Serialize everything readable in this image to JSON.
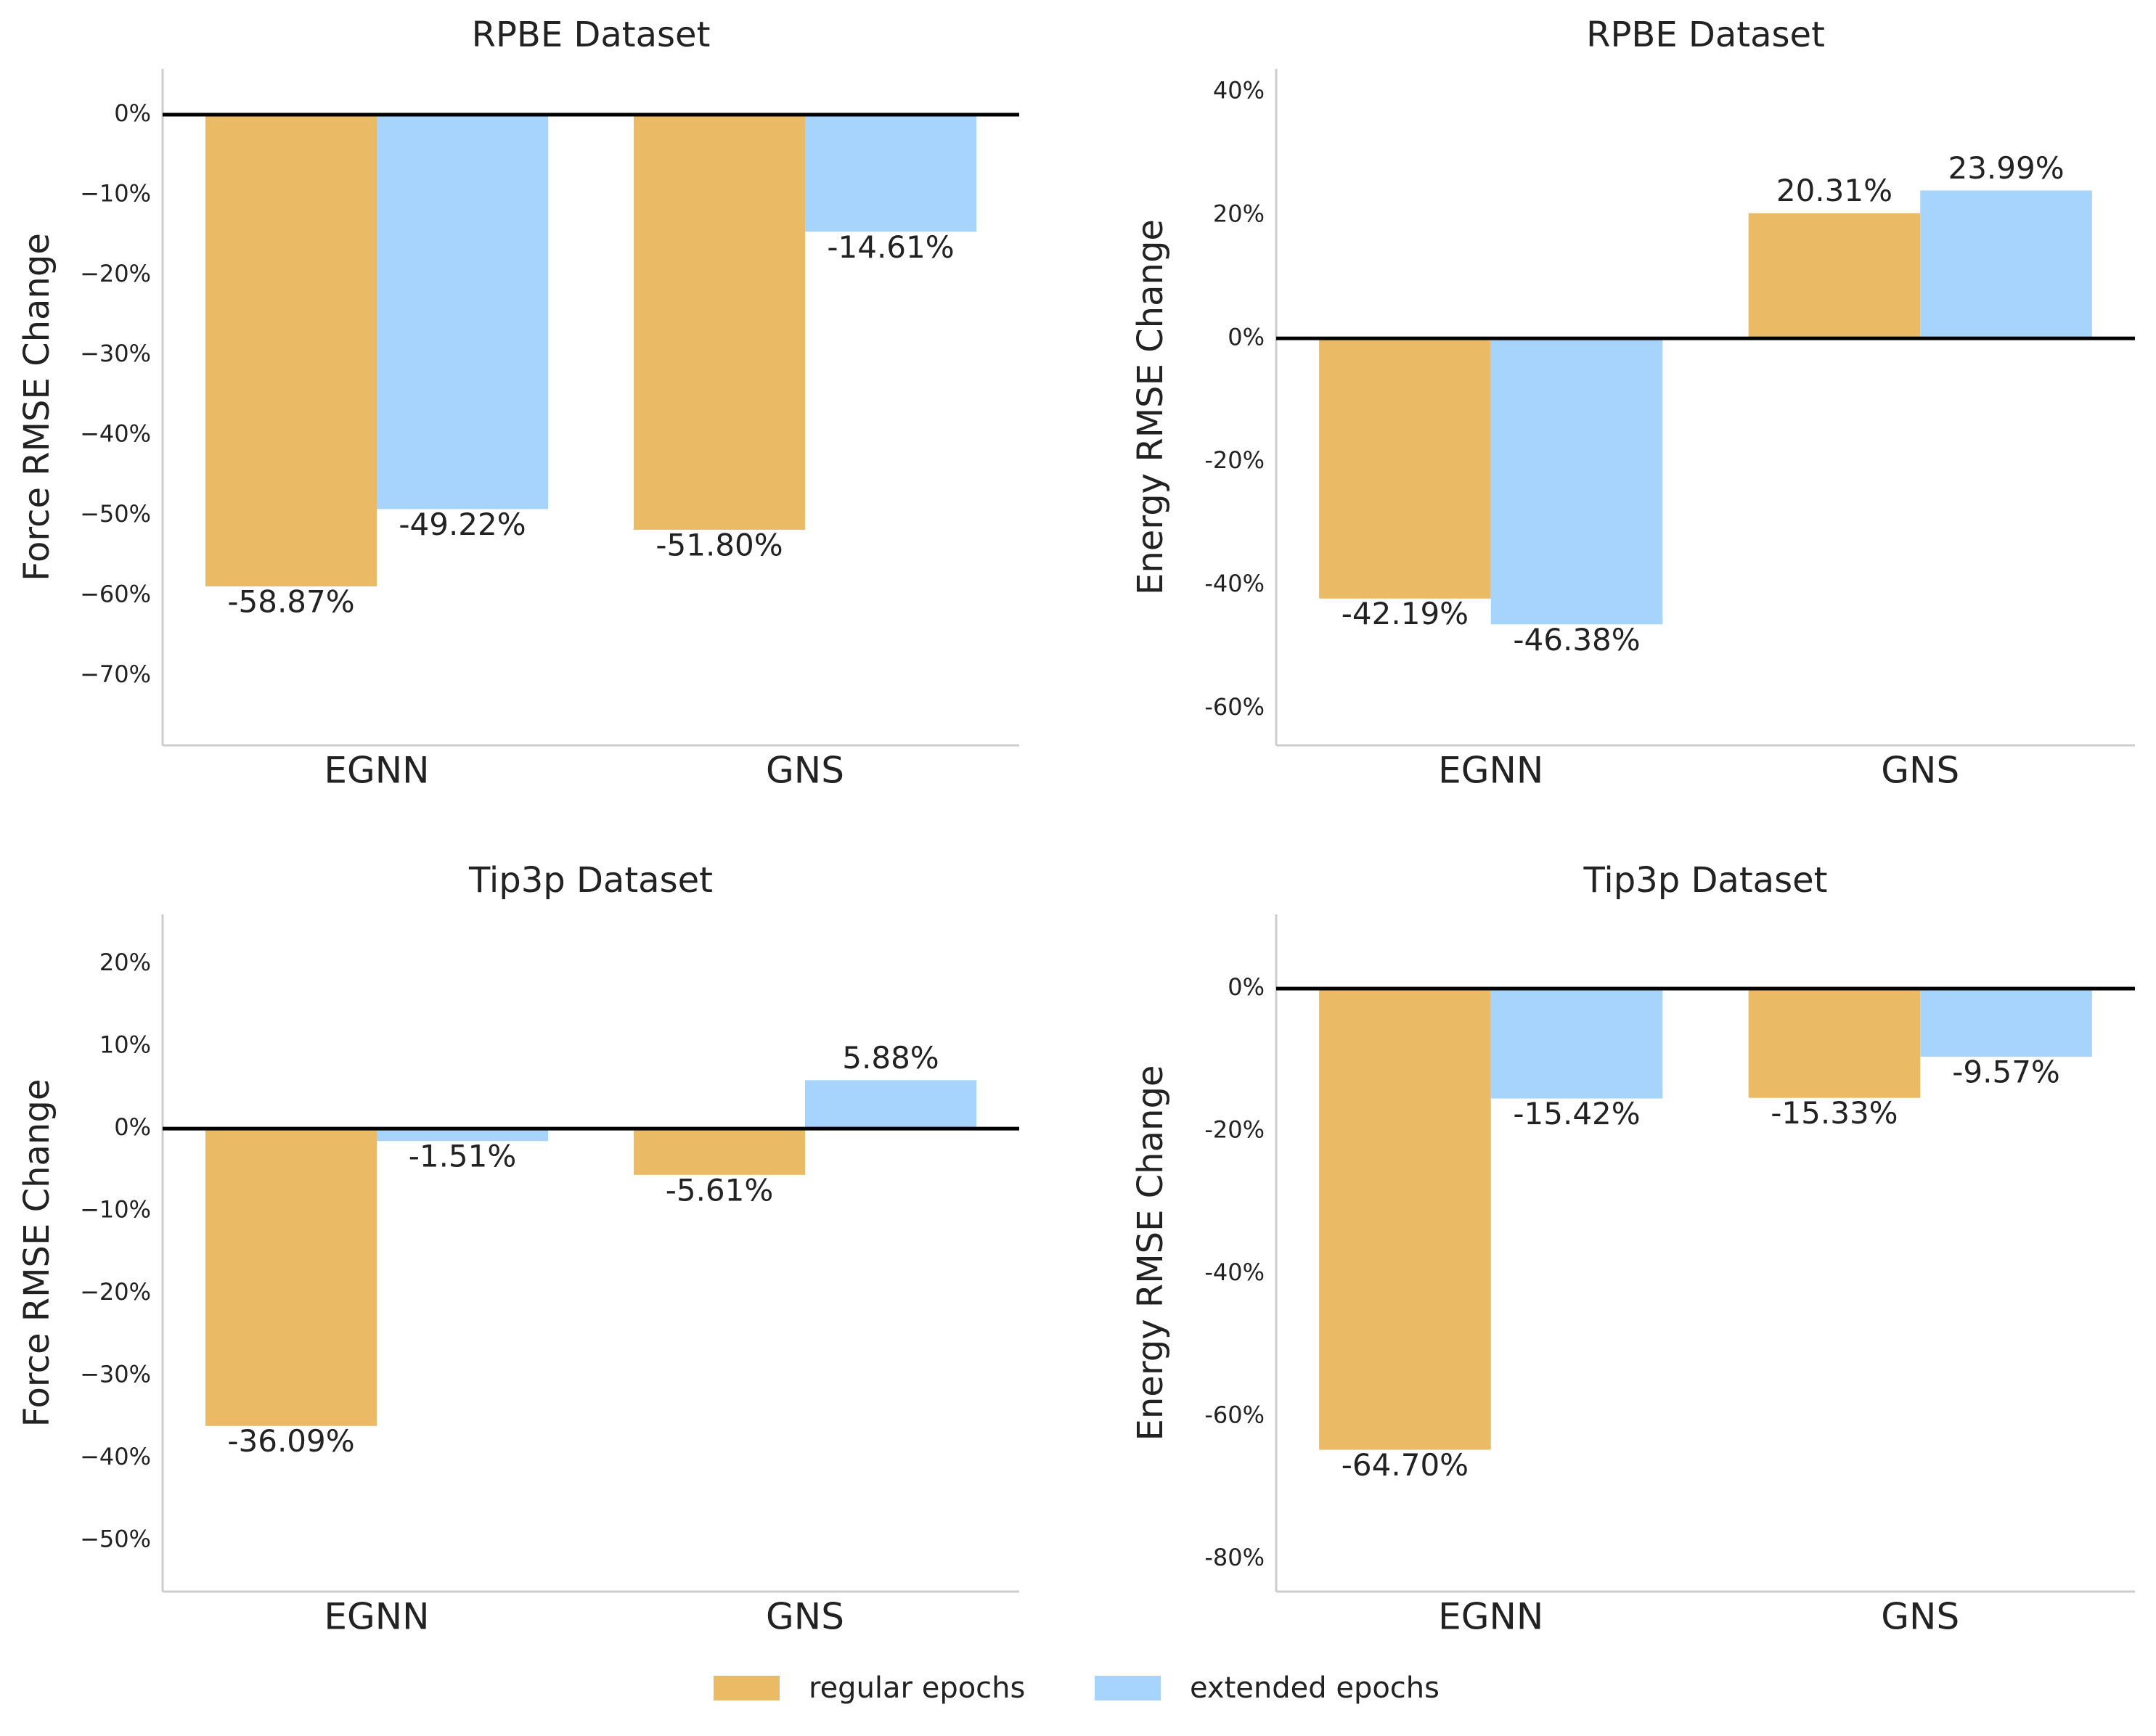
{
  "chart_data": [
    {
      "type": "bar",
      "title": "RPBE Dataset",
      "ylabel": "Force RMSE Change",
      "categories": [
        "EGNN",
        "GNS"
      ],
      "series": [
        {
          "name": "regular epochs",
          "color": "#ebba64",
          "values": [
            -58.87,
            -51.8
          ],
          "value_labels": [
            "-58.87%",
            "-51.80%"
          ]
        },
        {
          "name": "extended epochs",
          "color": "#a6d4fc",
          "values": [
            -49.22,
            -14.61
          ],
          "value_labels": [
            "-49.22%",
            "-14.61%"
          ]
        }
      ],
      "ylim": [
        -78.7,
        5.7
      ],
      "yticks": [
        {
          "value": 0,
          "label": "0%"
        },
        {
          "value": -10,
          "label": "−10%"
        },
        {
          "value": -20,
          "label": "−20%"
        },
        {
          "value": -30,
          "label": "−30%"
        },
        {
          "value": -40,
          "label": "−40%"
        },
        {
          "value": -50,
          "label": "−50%"
        },
        {
          "value": -60,
          "label": "−60%"
        },
        {
          "value": -70,
          "label": "−70%"
        }
      ]
    },
    {
      "type": "bar",
      "title": "RPBE Dataset",
      "ylabel": "Energy RMSE Change",
      "categories": [
        "EGNN",
        "GNS"
      ],
      "series": [
        {
          "name": "regular epochs",
          "color": "#ebba64",
          "values": [
            -42.19,
            20.31
          ],
          "value_labels": [
            "-42.19%",
            "20.31%"
          ]
        },
        {
          "name": "extended epochs",
          "color": "#a6d4fc",
          "values": [
            -46.38,
            23.99
          ],
          "value_labels": [
            "-46.38%",
            "23.99%"
          ]
        }
      ],
      "ylim": [
        -66,
        43.7
      ],
      "yticks": [
        {
          "value": -60,
          "label": "-60%"
        },
        {
          "value": -40,
          "label": "-40%"
        },
        {
          "value": -20,
          "label": "-20%"
        },
        {
          "value": 0,
          "label": "0%"
        },
        {
          "value": 20,
          "label": "20%"
        },
        {
          "value": 40,
          "label": "40%"
        }
      ]
    },
    {
      "type": "bar",
      "title": "Tip3p Dataset",
      "ylabel": "Force RMSE Change",
      "categories": [
        "EGNN",
        "GNS"
      ],
      "series": [
        {
          "name": "regular epochs",
          "color": "#ebba64",
          "values": [
            -36.09,
            -5.61
          ],
          "value_labels": [
            "-36.09%",
            "-5.61%"
          ]
        },
        {
          "name": "extended epochs",
          "color": "#a6d4fc",
          "values": [
            -1.51,
            5.88
          ],
          "value_labels": [
            "-1.51%",
            "5.88%"
          ]
        }
      ],
      "ylim": [
        -56.2,
        26
      ],
      "yticks": [
        {
          "value": 20,
          "label": "20%"
        },
        {
          "value": 10,
          "label": "10%"
        },
        {
          "value": 0,
          "label": "0%"
        },
        {
          "value": -10,
          "label": "−10%"
        },
        {
          "value": -20,
          "label": "−20%"
        },
        {
          "value": -30,
          "label": "−30%"
        },
        {
          "value": -40,
          "label": "−40%"
        },
        {
          "value": -50,
          "label": "−50%"
        }
      ]
    },
    {
      "type": "bar",
      "title": "Tip3p Dataset",
      "ylabel": "Energy RMSE Change",
      "categories": [
        "EGNN",
        "GNS"
      ],
      "series": [
        {
          "name": "regular epochs",
          "color": "#ebba64",
          "values": [
            -64.7,
            -15.33
          ],
          "value_labels": [
            "-64.70%",
            "-15.33%"
          ]
        },
        {
          "name": "extended epochs",
          "color": "#a6d4fc",
          "values": [
            -15.42,
            -9.57
          ],
          "value_labels": [
            "-15.42%",
            "-9.57%"
          ]
        }
      ],
      "ylim": [
        -84.6,
        10.4
      ],
      "yticks": [
        {
          "value": -80,
          "label": "-80%"
        },
        {
          "value": -60,
          "label": "-60%"
        },
        {
          "value": -40,
          "label": "-40%"
        },
        {
          "value": -20,
          "label": "-20%"
        },
        {
          "value": 0,
          "label": "0%"
        }
      ]
    }
  ]
}
